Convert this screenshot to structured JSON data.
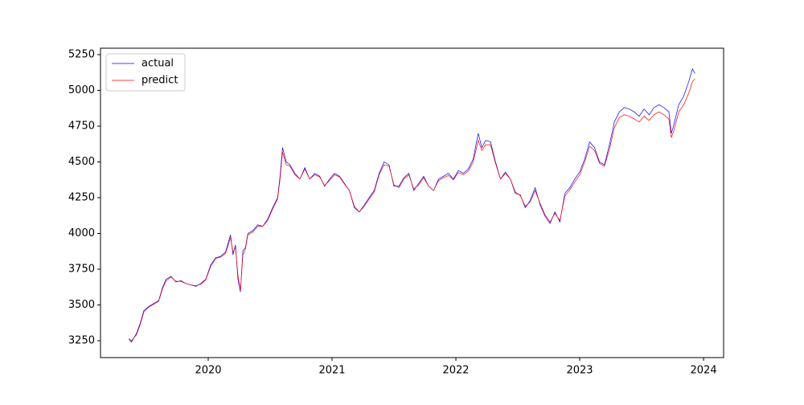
{
  "chart_data": {
    "type": "line",
    "x": [
      2019.36,
      2019.38,
      2019.42,
      2019.45,
      2019.48,
      2019.52,
      2019.56,
      2019.6,
      2019.63,
      2019.66,
      2019.7,
      2019.74,
      2019.78,
      2019.82,
      2019.86,
      2019.9,
      2019.94,
      2019.98,
      2020.02,
      2020.06,
      2020.1,
      2020.14,
      2020.18,
      2020.2,
      2020.22,
      2020.24,
      2020.26,
      2020.28,
      2020.3,
      2020.32,
      2020.36,
      2020.4,
      2020.44,
      2020.48,
      2020.52,
      2020.56,
      2020.58,
      2020.6,
      2020.63,
      2020.66,
      2020.7,
      2020.74,
      2020.78,
      2020.82,
      2020.86,
      2020.9,
      2020.94,
      2020.98,
      2021.02,
      2021.06,
      2021.1,
      2021.14,
      2021.18,
      2021.22,
      2021.26,
      2021.3,
      2021.34,
      2021.38,
      2021.42,
      2021.46,
      2021.5,
      2021.54,
      2021.58,
      2021.62,
      2021.66,
      2021.7,
      2021.74,
      2021.78,
      2021.82,
      2021.86,
      2021.9,
      2021.94,
      2021.98,
      2022.02,
      2022.06,
      2022.1,
      2022.14,
      2022.18,
      2022.21,
      2022.24,
      2022.28,
      2022.32,
      2022.36,
      2022.4,
      2022.44,
      2022.48,
      2022.52,
      2022.56,
      2022.6,
      2022.64,
      2022.68,
      2022.72,
      2022.76,
      2022.8,
      2022.84,
      2022.88,
      2022.92,
      2022.96,
      2023.0,
      2023.04,
      2023.08,
      2023.12,
      2023.16,
      2023.2,
      2023.24,
      2023.28,
      2023.32,
      2023.36,
      2023.4,
      2023.44,
      2023.48,
      2023.52,
      2023.56,
      2023.6,
      2023.64,
      2023.68,
      2023.72,
      2023.74,
      2023.76,
      2023.8,
      2023.84,
      2023.88,
      2023.91,
      2023.93
    ],
    "series": [
      {
        "name": "actual",
        "color": "#0000ff",
        "values": [
          3260,
          3240,
          3300,
          3370,
          3460,
          3490,
          3510,
          3530,
          3620,
          3680,
          3700,
          3660,
          3670,
          3650,
          3640,
          3630,
          3650,
          3680,
          3780,
          3830,
          3840,
          3870,
          3990,
          3850,
          3920,
          3680,
          3590,
          3880,
          3900,
          4000,
          4020,
          4060,
          4050,
          4100,
          4180,
          4250,
          4400,
          4600,
          4500,
          4480,
          4420,
          4380,
          4460,
          4380,
          4420,
          4400,
          4330,
          4380,
          4420,
          4400,
          4350,
          4300,
          4180,
          4150,
          4200,
          4250,
          4300,
          4420,
          4500,
          4480,
          4330,
          4330,
          4390,
          4420,
          4300,
          4350,
          4400,
          4330,
          4300,
          4380,
          4400,
          4420,
          4380,
          4440,
          4420,
          4450,
          4520,
          4700,
          4600,
          4650,
          4640,
          4500,
          4380,
          4430,
          4380,
          4280,
          4270,
          4180,
          4230,
          4320,
          4200,
          4120,
          4070,
          4150,
          4080,
          4280,
          4320,
          4380,
          4430,
          4520,
          4640,
          4600,
          4500,
          4480,
          4620,
          4780,
          4850,
          4880,
          4870,
          4850,
          4820,
          4870,
          4830,
          4880,
          4900,
          4880,
          4850,
          4700,
          4760,
          4900,
          4960,
          5060,
          5150,
          5120
        ]
      },
      {
        "name": "predict",
        "color": "#ff0000",
        "values": [
          3265,
          3250,
          3290,
          3360,
          3450,
          3485,
          3505,
          3525,
          3610,
          3670,
          3695,
          3665,
          3665,
          3650,
          3640,
          3635,
          3645,
          3675,
          3770,
          3825,
          3835,
          3860,
          3970,
          3870,
          3900,
          3710,
          3600,
          3850,
          3890,
          3990,
          4010,
          4050,
          4050,
          4090,
          4170,
          4240,
          4380,
          4570,
          4480,
          4470,
          4410,
          4380,
          4450,
          4380,
          4410,
          4395,
          4335,
          4370,
          4410,
          4395,
          4345,
          4300,
          4190,
          4150,
          4190,
          4240,
          4290,
          4410,
          4480,
          4470,
          4340,
          4320,
          4380,
          4410,
          4310,
          4340,
          4390,
          4330,
          4300,
          4370,
          4390,
          4405,
          4375,
          4425,
          4410,
          4435,
          4500,
          4650,
          4580,
          4620,
          4620,
          4490,
          4380,
          4420,
          4380,
          4290,
          4265,
          4190,
          4220,
          4300,
          4210,
          4130,
          4080,
          4140,
          4090,
          4260,
          4305,
          4360,
          4410,
          4500,
          4610,
          4580,
          4490,
          4470,
          4590,
          4740,
          4810,
          4830,
          4820,
          4800,
          4780,
          4820,
          4790,
          4830,
          4850,
          4830,
          4800,
          4670,
          4720,
          4850,
          4900,
          4980,
          5060,
          5080
        ]
      }
    ],
    "xlim": [
      2019.13,
      2024.162
    ],
    "xticks": [
      2020,
      2021,
      2022,
      2023,
      2024
    ],
    "ylim": [
      3132,
      5295
    ],
    "yticks": [
      3250,
      3500,
      3750,
      4000,
      4250,
      4500,
      4750,
      5000,
      5250
    ],
    "legend": "upper left"
  }
}
